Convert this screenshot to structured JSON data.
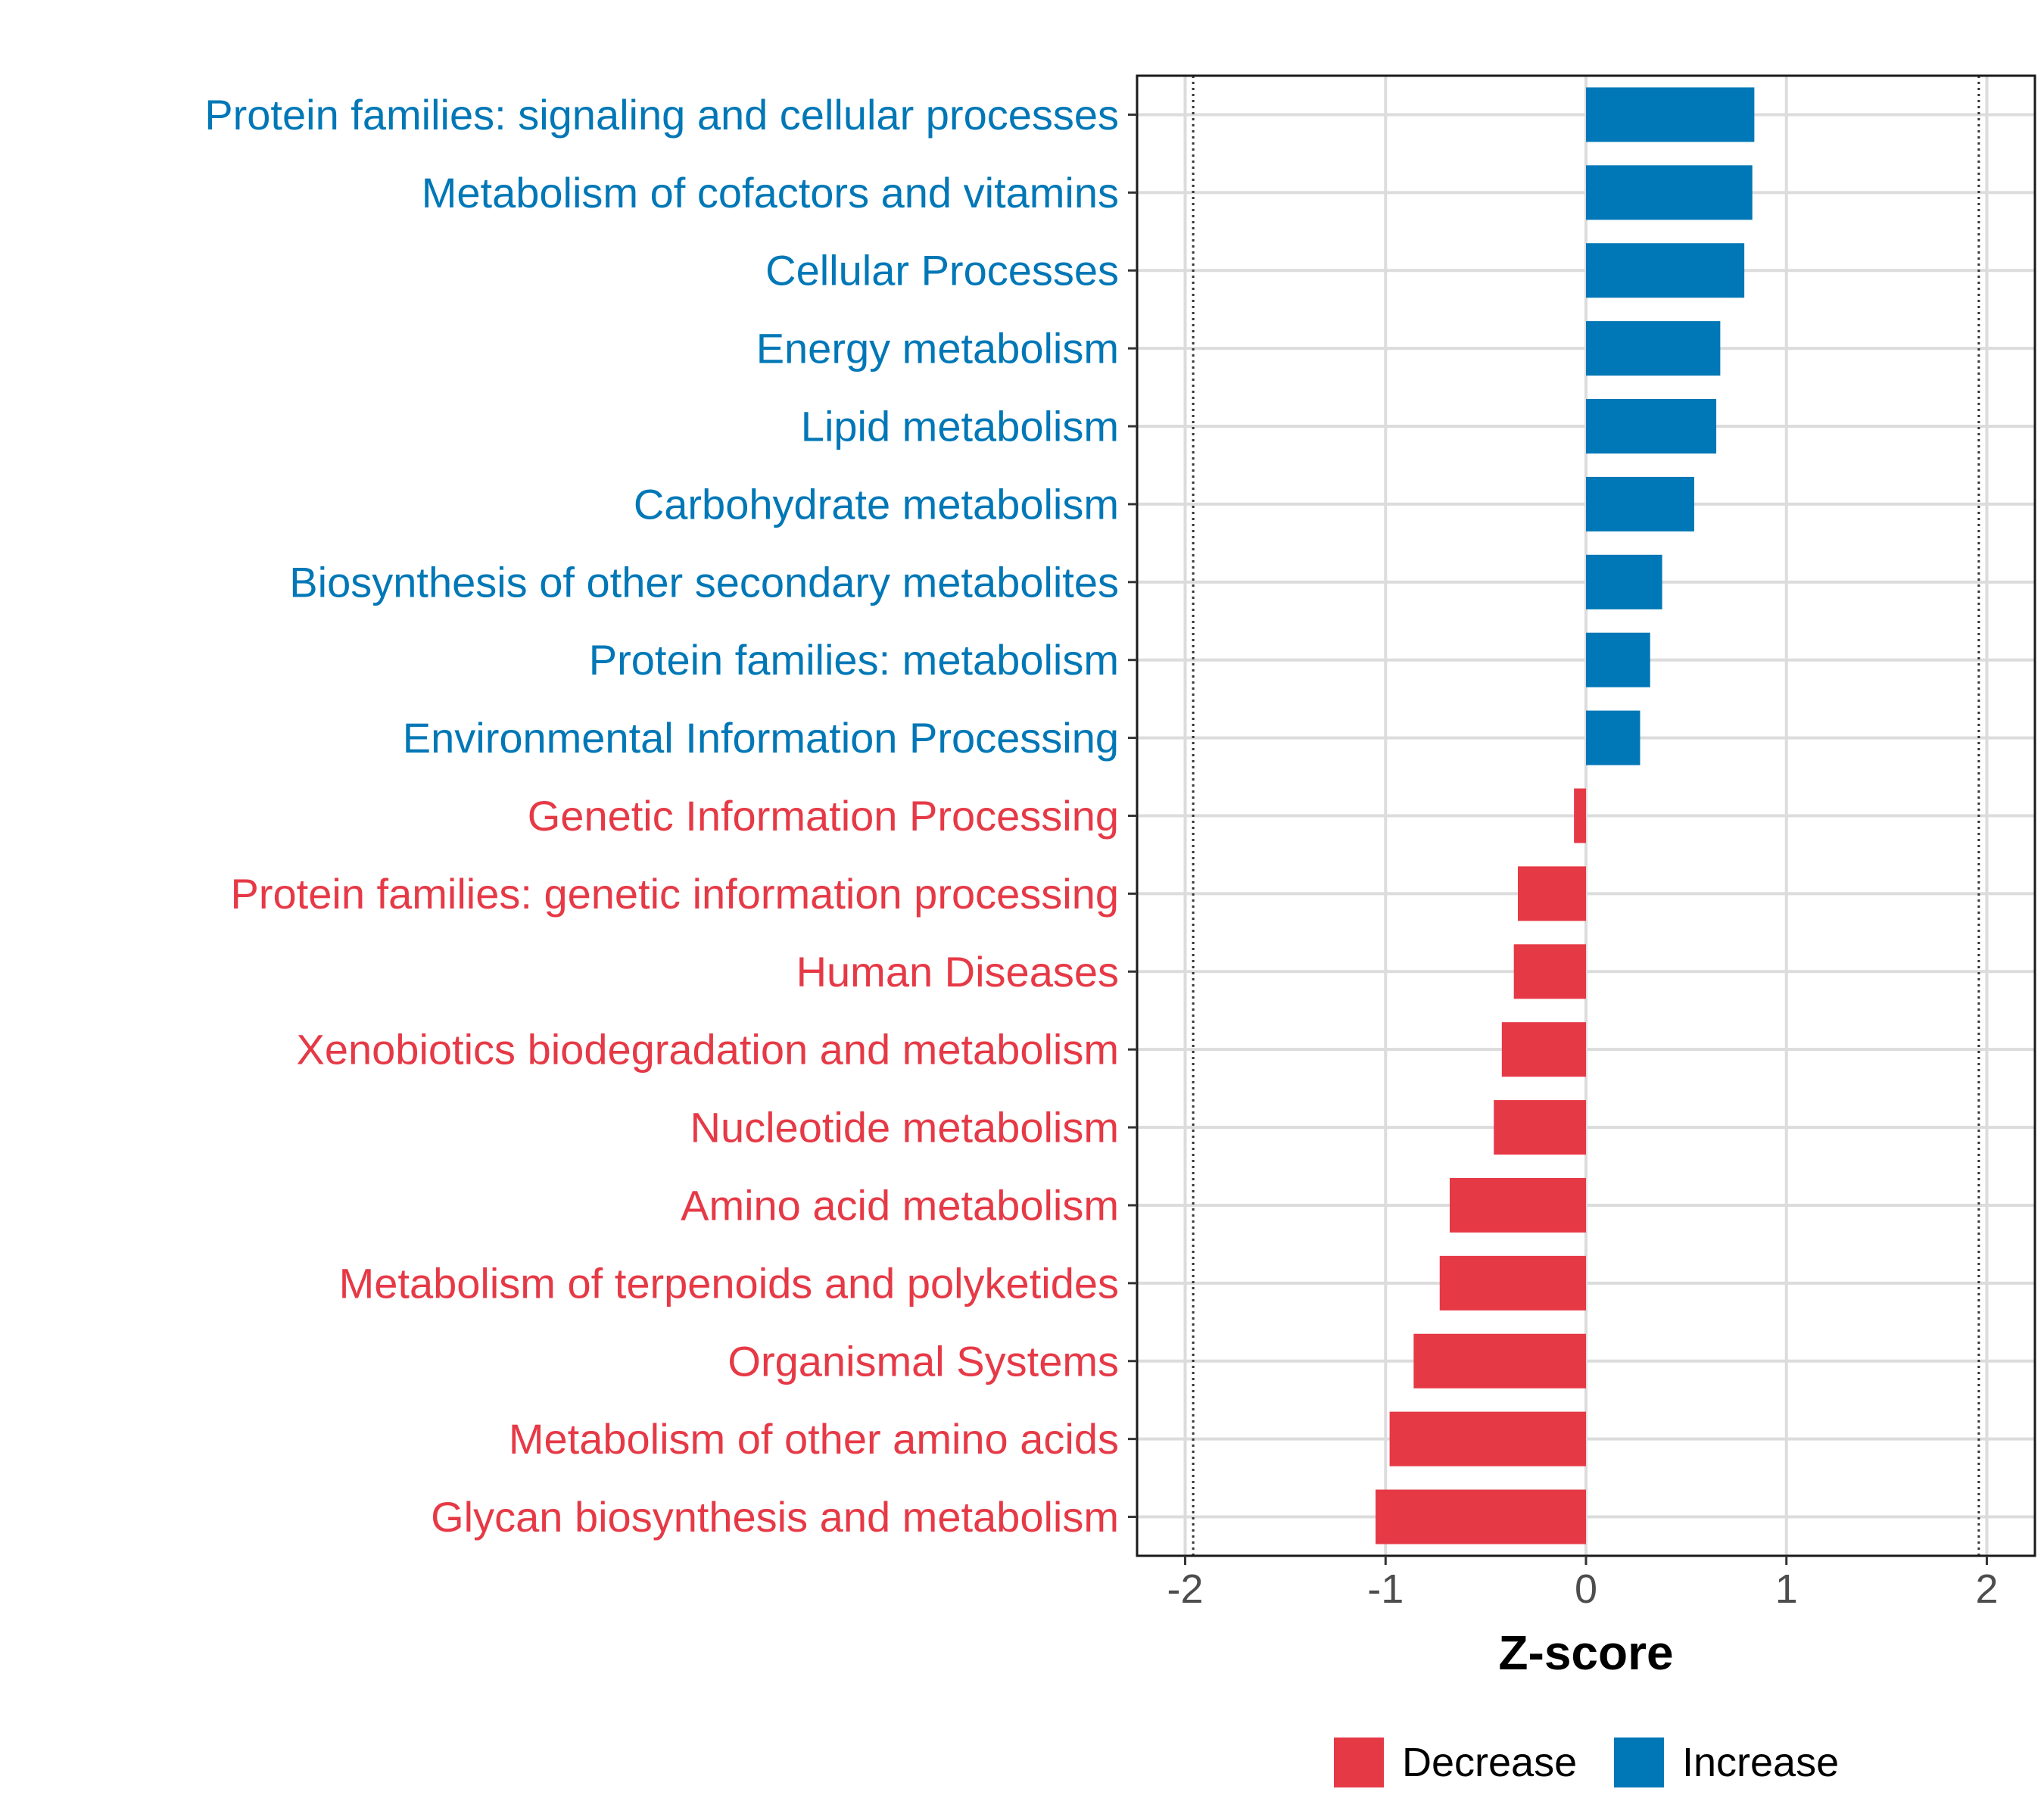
{
  "chart_data": {
    "type": "bar",
    "orientation": "horizontal",
    "xlabel": "Z-score",
    "xlim": [
      -2.24,
      2.24
    ],
    "xticks": [
      -2,
      -1,
      0,
      1,
      2
    ],
    "xtick_labels": [
      "-2",
      "-1",
      "0",
      "1",
      "2"
    ],
    "reference_lines": [
      -1.96,
      1.96
    ],
    "grid": true,
    "legend_position": "bottom",
    "legend": [
      {
        "name": "Decrease",
        "color": "#E63946"
      },
      {
        "name": "Increase",
        "color": "#0077B6"
      }
    ],
    "categories": [
      "Protein families: signaling and cellular processes",
      "Metabolism of cofactors and vitamins",
      "Cellular Processes",
      "Energy metabolism",
      "Lipid metabolism",
      "Carbohydrate metabolism",
      "Biosynthesis of other secondary metabolites",
      "Protein families: metabolism",
      "Environmental Information Processing",
      "Genetic Information Processing",
      "Protein families: genetic information processing",
      "Human Diseases",
      "Xenobiotics biodegradation and metabolism",
      "Nucleotide metabolism",
      "Amino acid metabolism",
      "Metabolism of terpenoids and polyketides",
      "Organismal Systems",
      "Metabolism of other amino acids",
      "Glycan biosynthesis and metabolism"
    ],
    "values": [
      0.84,
      0.83,
      0.79,
      0.67,
      0.65,
      0.54,
      0.38,
      0.32,
      0.27,
      -0.06,
      -0.34,
      -0.36,
      -0.42,
      -0.46,
      -0.68,
      -0.73,
      -0.86,
      -0.98,
      -1.05
    ]
  }
}
